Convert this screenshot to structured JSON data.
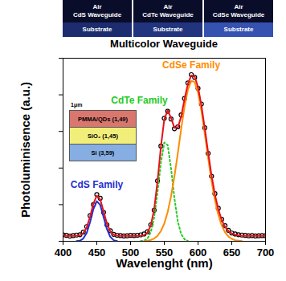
{
  "photos": {
    "panels": [
      {
        "top": "Air",
        "waveguide": "CdS Waveguide",
        "bottom": "Substrate"
      },
      {
        "top": "Air",
        "waveguide": "CdTe Waveguide",
        "bottom": "Substrate"
      },
      {
        "top": "Air",
        "waveguide": "CdSe Waveguide",
        "bottom": "Substrate"
      }
    ]
  },
  "inset": {
    "scale_label": "1μm",
    "layers": [
      {
        "label": "PMMA/QDs (1,49)",
        "color": "#d9776f"
      },
      {
        "label": "SiO₂ (1,45)",
        "color": "#f2ee7a"
      },
      {
        "label": "Si (3,59)",
        "color": "#86aee3"
      }
    ]
  },
  "chart_data": {
    "type": "line",
    "title": "Multicolor Waveguide",
    "x_label": "Wavelenght (nm)",
    "y_label": "Photoluminisence (a.u.)",
    "x": [
      400,
      405,
      410,
      415,
      420,
      425,
      430,
      435,
      440,
      445,
      450,
      455,
      460,
      465,
      470,
      475,
      480,
      485,
      490,
      495,
      500,
      505,
      510,
      515,
      520,
      525,
      530,
      535,
      540,
      545,
      550,
      555,
      560,
      565,
      570,
      575,
      580,
      585,
      590,
      595,
      600,
      605,
      610,
      615,
      620,
      625,
      630,
      635,
      640,
      645,
      650,
      655,
      660,
      665,
      670,
      675,
      680,
      685,
      690,
      695,
      700
    ],
    "series": [
      {
        "type": "scatter",
        "marker": "circle",
        "color": "#000000",
        "values": [
          0.035,
          0.032,
          0.028,
          0.031,
          0.034,
          0.036,
          0.05,
          0.08,
          0.14,
          0.2,
          0.255,
          0.235,
          0.158,
          0.09,
          0.058,
          0.038,
          0.033,
          0.031,
          0.029,
          0.03,
          0.032,
          0.031,
          0.033,
          0.035,
          0.04,
          0.052,
          0.09,
          0.17,
          0.33,
          0.52,
          0.672,
          0.71,
          0.668,
          0.615,
          0.625,
          0.69,
          0.78,
          0.865,
          0.91,
          0.895,
          0.835,
          0.75,
          0.62,
          0.48,
          0.355,
          0.26,
          0.18,
          0.12,
          0.085,
          0.06,
          0.045,
          0.04,
          0.036,
          0.034,
          0.032,
          0.03,
          0.031,
          0.029,
          0.03,
          0.031,
          0.03
        ]
      },
      {
        "name": "CdS Family",
        "type": "line",
        "line_style": "solid",
        "color": "#1f2fd0",
        "values": [
          null,
          null,
          null,
          null,
          0.001,
          0.003,
          0.015,
          0.045,
          0.104,
          0.176,
          0.219,
          0.199,
          0.133,
          0.066,
          0.024,
          0.006,
          0.001,
          null,
          null,
          null,
          null,
          null,
          null,
          null,
          null,
          null,
          null,
          null,
          null,
          null,
          null,
          null,
          null,
          null,
          null,
          null,
          null,
          null,
          null,
          null,
          null,
          null,
          null,
          null,
          null,
          null,
          null,
          null,
          null,
          null,
          null,
          null,
          null,
          null,
          null,
          null,
          null,
          null,
          null,
          null,
          null
        ]
      },
      {
        "name": "CdTe Family",
        "type": "line",
        "line_style": "dotted",
        "color": "#22cc22",
        "values": [
          null,
          null,
          null,
          null,
          null,
          null,
          null,
          null,
          null,
          null,
          null,
          null,
          null,
          null,
          null,
          null,
          null,
          null,
          null,
          null,
          null,
          null,
          null,
          0.001,
          0.003,
          0.014,
          0.049,
          0.13,
          0.268,
          0.431,
          0.539,
          0.526,
          0.399,
          0.236,
          0.109,
          0.039,
          0.011,
          0.002,
          null,
          null,
          null,
          null,
          null,
          null,
          null,
          null,
          null,
          null,
          null,
          null,
          null,
          null,
          null,
          null,
          null,
          null,
          null,
          null,
          null,
          null,
          null
        ]
      },
      {
        "name": "CdSe Family",
        "type": "line",
        "line_style": "solid",
        "color": "#ff8c00",
        "values": [
          null,
          null,
          null,
          null,
          null,
          null,
          null,
          null,
          null,
          null,
          null,
          null,
          null,
          null,
          null,
          null,
          null,
          null,
          null,
          null,
          null,
          null,
          null,
          null,
          0.001,
          0.003,
          0.007,
          0.015,
          0.03,
          0.056,
          0.097,
          0.159,
          0.245,
          0.354,
          0.48,
          0.613,
          0.735,
          0.828,
          0.876,
          0.87,
          0.812,
          0.713,
          0.587,
          0.454,
          0.33,
          0.226,
          0.145,
          0.087,
          0.049,
          0.026,
          0.013,
          0.006,
          0.003,
          0.001,
          null,
          null,
          null,
          null,
          null,
          null,
          null
        ]
      },
      {
        "type": "line",
        "line_style": "solid",
        "color": "#e8101a",
        "values": [
          0.03,
          0.03,
          0.03,
          0.03,
          0.031,
          0.033,
          0.045,
          0.075,
          0.134,
          0.206,
          0.249,
          0.229,
          0.163,
          0.096,
          0.054,
          0.036,
          0.031,
          0.03,
          0.03,
          0.03,
          0.03,
          0.03,
          0.03,
          0.031,
          0.034,
          0.047,
          0.086,
          0.175,
          0.328,
          0.517,
          0.666,
          0.715,
          0.674,
          0.62,
          0.619,
          0.682,
          0.776,
          0.86,
          0.906,
          0.9,
          0.842,
          0.743,
          0.617,
          0.484,
          0.36,
          0.256,
          0.175,
          0.117,
          0.079,
          0.056,
          0.043,
          0.036,
          0.033,
          0.031,
          0.03,
          0.03,
          0.03,
          0.03,
          0.03,
          0.03,
          0.03
        ]
      }
    ],
    "xlim": [
      400,
      700
    ],
    "xticks": [
      400,
      450,
      500,
      550,
      600,
      650,
      700
    ],
    "ylim": [
      0,
      1
    ],
    "yticks": [
      0,
      0.2,
      0.4,
      0.6,
      0.8,
      1
    ],
    "tick_labels": "x",
    "grid": false
  }
}
